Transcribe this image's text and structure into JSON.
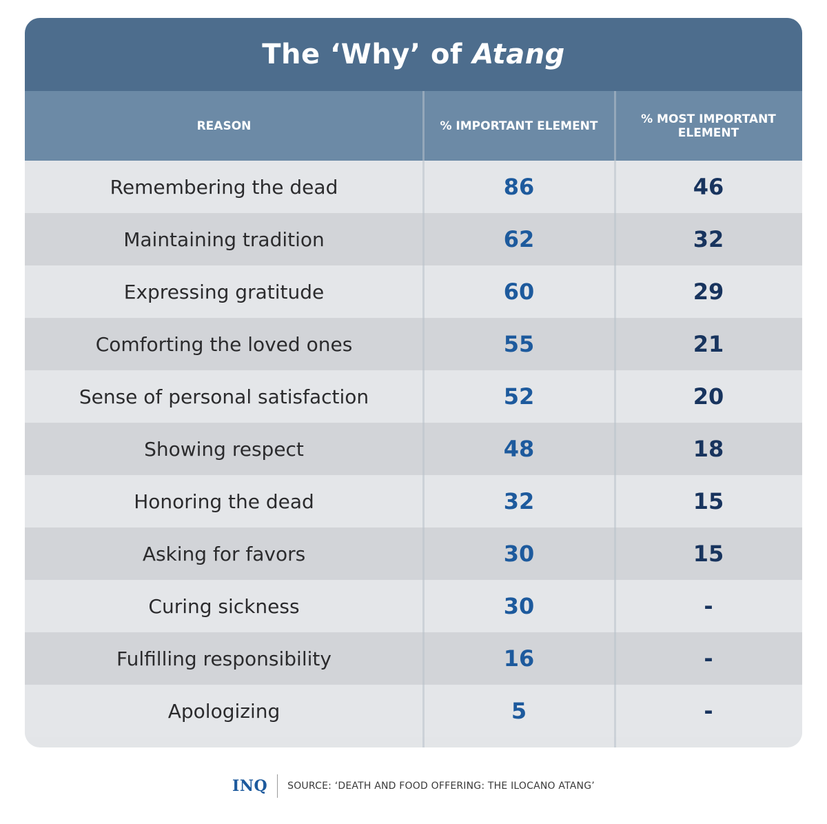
{
  "chart_data": {
    "type": "table",
    "title_prefix": "The ‘Why’ of ",
    "title_italic": "Atang",
    "columns": [
      "REASON",
      "% IMPORTANT ELEMENT",
      "% MOST IMPORTANT ELEMENT"
    ],
    "rows": [
      {
        "reason": "Remembering the dead",
        "important": "86",
        "most_important": "46"
      },
      {
        "reason": "Maintaining tradition",
        "important": "62",
        "most_important": "32"
      },
      {
        "reason": "Expressing gratitude",
        "important": "60",
        "most_important": "29"
      },
      {
        "reason": "Comforting the loved ones",
        "important": "55",
        "most_important": "21"
      },
      {
        "reason": "Sense of personal satisfaction",
        "important": "52",
        "most_important": "20"
      },
      {
        "reason": "Showing respect",
        "important": "48",
        "most_important": "18"
      },
      {
        "reason": "Honoring the dead",
        "important": "32",
        "most_important": "15"
      },
      {
        "reason": "Asking for favors",
        "important": "30",
        "most_important": "15"
      },
      {
        "reason": "Curing sickness",
        "important": "30",
        "most_important": "-"
      },
      {
        "reason": "Fulfilling responsibility",
        "important": "16",
        "most_important": "-"
      },
      {
        "reason": "Apologizing",
        "important": "5",
        "most_important": "-"
      }
    ]
  },
  "footer": {
    "logo": "INQ",
    "source": "SOURCE: ‘DEATH AND FOOD OFFERING: THE ILOCANO ATANG’"
  },
  "colors": {
    "title_bar": "#4d6d8d",
    "header_row": "#6c8aa6",
    "important_value": "#1d5a9d",
    "most_important_value": "#18345e"
  }
}
